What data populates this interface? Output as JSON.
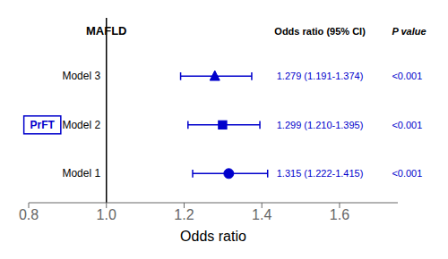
{
  "chart_data": {
    "type": "forest",
    "xlabel": "Odds ratio",
    "categories": [
      "Model 3",
      "Model 2",
      "Model 1"
    ],
    "values": [
      1.279,
      1.299,
      1.315
    ],
    "ci_low": [
      1.191,
      1.21,
      1.222
    ],
    "ci_high": [
      1.374,
      1.395,
      1.415
    ],
    "value_labels": [
      "1.279 (1.191-1.374)",
      "1.299 (1.210-1.395)",
      "1.315 (1.222-1.415)"
    ],
    "p_labels": [
      "<0.001",
      "<0.001",
      "<0.001"
    ],
    "markers": [
      "triangle",
      "square",
      "circle"
    ],
    "color": "#0000CC",
    "xlim": [
      0.8,
      1.75
    ],
    "xticks": [
      0.8,
      {
        "value": 1.0,
        "label": "1.0"
      },
      1.2,
      1.4,
      1.6
    ],
    "reference_line": 1.0,
    "group_label": "MAFLD",
    "column_headers": [
      "Odds ratio (95% CI)",
      "P value"
    ],
    "box_label": "PrFT"
  }
}
